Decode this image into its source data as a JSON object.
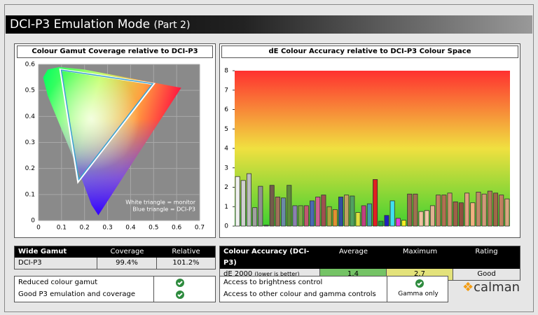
{
  "header": {
    "title": "DCI-P3 Emulation Mode",
    "subtitle": "(Part 2)"
  },
  "chart_data": [
    {
      "type": "gamut",
      "title": "Colour Gamut Coverage relative to DCI-P3",
      "xlim": [
        0,
        0.7
      ],
      "xticks": [
        0,
        0.1,
        0.2,
        0.3,
        0.4,
        0.5,
        0.6,
        0.7
      ],
      "ylim": [
        0,
        0.6
      ],
      "yticks": [
        0,
        0.1,
        0.2,
        0.3,
        0.4,
        0.5,
        0.6
      ],
      "grid": true,
      "annotations": [
        "White triangle = monitor",
        "Blue triangle = DCI-P3"
      ],
      "series": [
        {
          "name": "monitor",
          "color": "#ffffff",
          "x": [
            0.095,
            0.5,
            0.172
          ],
          "values": [
            0.58,
            0.525,
            0.15
          ]
        },
        {
          "name": "DCI-P3",
          "color": "#3aa0d0",
          "x": [
            0.099,
            0.496,
            0.175
          ],
          "values": [
            0.578,
            0.526,
            0.158
          ]
        }
      ]
    },
    {
      "type": "bar",
      "title": "dE Colour Accuracy relative to DCI-P3 Colour Space",
      "ylim": [
        0,
        8
      ],
      "yticks": [
        0,
        1,
        2,
        3,
        4,
        5,
        6,
        7,
        8
      ],
      "values": [
        2.55,
        2.35,
        2.7,
        0.95,
        2.05,
        0.05,
        2.1,
        1.5,
        1.45,
        2.1,
        1.05,
        1.05,
        1.05,
        1.3,
        1.5,
        1.6,
        1.0,
        0.85,
        1.5,
        1.6,
        1.55,
        0.7,
        1.05,
        1.15,
        2.4,
        0.25,
        0.55,
        1.3,
        0.4,
        0.3,
        1.65,
        1.65,
        0.75,
        0.8,
        1.05,
        1.6,
        1.6,
        1.7,
        1.25,
        1.2,
        1.7,
        1.2,
        1.75,
        1.65,
        1.8,
        1.7,
        1.6,
        1.4
      ],
      "colors": [
        "#f0f0f0",
        "#d0d0d0",
        "#bdbdbd",
        "#a0a0a0",
        "#909090",
        "#606060",
        "#735c4a",
        "#a0705a",
        "#6b8aa8",
        "#5e8a3a",
        "#8a80b0",
        "#7ea848",
        "#c05870",
        "#4a6ab0",
        "#d06090",
        "#a05050",
        "#b0a040",
        "#e09030",
        "#3050a0",
        "#c0a060",
        "#50a060",
        "#e0e040",
        "#c04080",
        "#40a0b0",
        "#e02020",
        "#20a040",
        "#2020c0",
        "#40e0f0",
        "#e040e0",
        "#f0f020",
        "#9a6a50",
        "#a07050",
        "#f0c0a0",
        "#f0c8a8",
        "#e0b090",
        "#c08060",
        "#b07050",
        "#d09070",
        "#a06048",
        "#905040",
        "#e0a080",
        "#f0b080",
        "#c08868",
        "#d09878",
        "#b07858",
        "#a06848",
        "#c08060",
        "#d8a880"
      ]
    }
  ],
  "gamut_table": {
    "headers": [
      "Wide Gamut",
      "Coverage",
      "Relative"
    ],
    "row": [
      "DCI-P3",
      "99.4%",
      "101.2%"
    ]
  },
  "accuracy_table": {
    "headers": [
      "Colour Accuracy (DCI-P3)",
      "Average",
      "Maximum",
      "Rating"
    ],
    "row": [
      "dE 2000",
      "(lower is better)",
      "1.4",
      "2.7",
      "Good"
    ]
  },
  "gamut_checks": [
    "Reduced colour gamut",
    "Good P3 emulation and coverage"
  ],
  "controls": {
    "items": [
      "Access to brightness control",
      "Access to other colour and gamma controls"
    ],
    "status": "Gamma only"
  },
  "logo": "calman"
}
